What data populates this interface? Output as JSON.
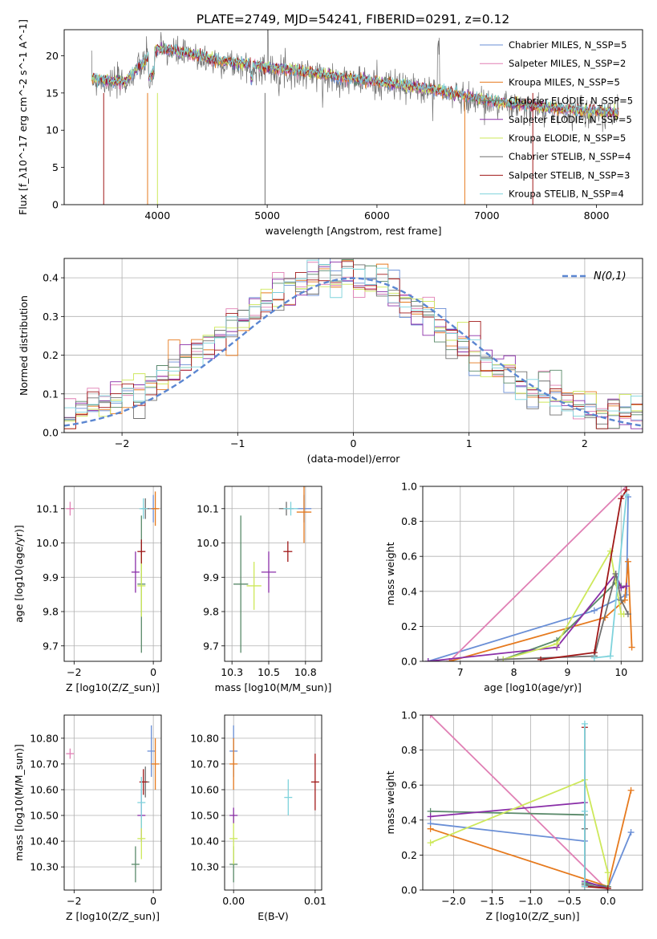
{
  "figure": {
    "title": "PLATE=2749, MJD=54241, FIBERID=0291, z=0.12"
  },
  "colors": {
    "Chabrier MILES": "#6a8fd6",
    "Salpeter MILES": "#e07fb4",
    "Kroupa MILES": "#e67a1e",
    "Chabrier ELODIE": "#5a8a6a",
    "Salpeter ELODIE": "#8a2fa8",
    "Kroupa ELODIE": "#cde85a",
    "Chabrier STELIB": "#707070",
    "Salpeter STELIB": "#a01818",
    "Kroupa STELIB": "#7fd3dc"
  },
  "chart_data": [
    {
      "id": "spectrum",
      "type": "line",
      "xlabel": "wavelength [Angstrom, rest frame]",
      "ylabel": "Flux [f_λ10^-17 erg cm^-2 s^-1 A^-1]",
      "xlim": [
        3150,
        8420
      ],
      "ylim": [
        0,
        23.5
      ],
      "xticks": [
        4000,
        5000,
        6000,
        7000,
        8000
      ],
      "yticks": [
        0,
        5,
        10,
        15,
        20
      ],
      "legend": "top-right",
      "legend_entries": [
        "Chabrier MILES, N_SSP=5",
        "Salpeter MILES, N_SSP=2",
        "Kroupa MILES, N_SSP=5",
        "Chabrier ELODIE, N_SSP=5",
        "Salpeter ELODIE, N_SSP=5",
        "Kroupa ELODIE, N_SSP=5",
        "Chabrier STELIB, N_SSP=4",
        "Salpeter STELIB, N_SSP=3",
        "Kroupa STELIB, N_SSP=4"
      ],
      "continuum_x": [
        3400,
        3600,
        3700,
        3800,
        3900,
        3950,
        4000,
        4200,
        4500,
        5000,
        5500,
        6000,
        6500,
        7000,
        7500,
        8000,
        8200
      ],
      "continuum_y": [
        17,
        16.5,
        16.5,
        18,
        19.5,
        20.5,
        21,
        20.5,
        19.5,
        18.5,
        17.5,
        16.5,
        15.5,
        14,
        13,
        12.5,
        12.3
      ]
    },
    {
      "id": "residual_hist",
      "type": "histogram",
      "xlabel": "(data-model)/error",
      "ylabel": "Normed distribution",
      "xlim": [
        -2.5,
        2.5
      ],
      "ylim": [
        0,
        0.45
      ],
      "xticks": [
        -2,
        -1,
        0,
        1,
        2
      ],
      "yticks": [
        0.0,
        0.1,
        0.2,
        0.3,
        0.4
      ],
      "reference": "N(0,1)",
      "legend": "top-right"
    },
    {
      "id": "age_vs_Z",
      "type": "scatter",
      "xlabel": "Z [log10(Z/Z_sun)]",
      "ylabel": "age  [log10(age/yr)]",
      "xlim": [
        -2.25,
        0.2
      ],
      "ylim": [
        9.655,
        10.165
      ],
      "xticks": [
        -2,
        0
      ],
      "yticks": [
        9.7,
        9.8,
        9.9,
        10.0,
        10.1
      ],
      "points": [
        {
          "model": "Salpeter MILES",
          "x": -2.1,
          "y": 10.1,
          "ey": 0.02
        },
        {
          "model": "Chabrier MILES",
          "x": 0.0,
          "y": 10.1,
          "ey": 0.04
        },
        {
          "model": "Kroupa MILES",
          "x": 0.05,
          "y": 10.1,
          "ey": 0.05
        },
        {
          "model": "Chabrier ELODIE",
          "x": -0.3,
          "y": 9.88,
          "ey": 0.2
        },
        {
          "model": "Salpeter ELODIE",
          "x": -0.45,
          "y": 9.915,
          "ey": 0.06
        },
        {
          "model": "Kroupa ELODIE",
          "x": -0.3,
          "y": 9.875,
          "ey": 0.09
        },
        {
          "model": "Chabrier STELIB",
          "x": -0.2,
          "y": 10.1,
          "ey": 0.03
        },
        {
          "model": "Salpeter STELIB",
          "x": -0.3,
          "y": 9.975,
          "ey": 0.035
        },
        {
          "model": "Kroupa STELIB",
          "x": -0.25,
          "y": 10.1,
          "ey": 0.03
        }
      ]
    },
    {
      "id": "age_vs_mass",
      "type": "scatter",
      "xlabel": "mass [log10(M/M_sun)]",
      "ylabel": "",
      "xlim": [
        10.2,
        10.86
      ],
      "ylim": [
        9.655,
        10.165
      ],
      "xticks": [
        10.25,
        10.5,
        10.75
      ],
      "yticks": [
        9.7,
        9.8,
        9.9,
        10.0,
        10.1
      ],
      "points": [
        {
          "model": "Chabrier MILES",
          "x": 10.74,
          "y": 10.1,
          "ex": 0.1,
          "ey": 0.04
        },
        {
          "model": "Kroupa MILES",
          "x": 10.74,
          "y": 10.09,
          "ex": 0.1,
          "ey": 0.09
        },
        {
          "model": "Chabrier ELODIE",
          "x": 10.31,
          "y": 9.88,
          "ex": 0.1,
          "ey": 0.2
        },
        {
          "model": "Salpeter ELODIE",
          "x": 10.5,
          "y": 9.915,
          "ex": 0.1,
          "ey": 0.06
        },
        {
          "model": "Kroupa ELODIE",
          "x": 10.4,
          "y": 9.875,
          "ex": 0.1,
          "ey": 0.07
        },
        {
          "model": "Chabrier STELIB",
          "x": 10.62,
          "y": 10.1,
          "ex": 0.1,
          "ey": 0.02
        },
        {
          "model": "Salpeter STELIB",
          "x": 10.63,
          "y": 9.975,
          "ex": 0.06,
          "ey": 0.03
        },
        {
          "model": "Kroupa STELIB",
          "x": 10.65,
          "y": 10.1,
          "ex": 0.1,
          "ey": 0.02
        }
      ]
    },
    {
      "id": "massweight_vs_age",
      "type": "line",
      "xlabel": "age  [log10(age/yr)]",
      "ylabel": "mass weight",
      "xlim": [
        6.3,
        10.4
      ],
      "ylim": [
        0.0,
        1.0
      ],
      "xticks": [
        7,
        8,
        9,
        10
      ],
      "yticks": [
        0.0,
        0.2,
        0.4,
        0.6,
        0.8,
        1.0
      ],
      "series": [
        {
          "model": "Chabrier MILES",
          "x": [
            6.4,
            9.5,
            10.1,
            10.13
          ],
          "y": [
            0.0,
            0.29,
            0.38,
            0.94
          ]
        },
        {
          "model": "Salpeter MILES",
          "x": [
            6.8,
            10.1
          ],
          "y": [
            0.0,
            1.0
          ]
        },
        {
          "model": "Kroupa MILES",
          "x": [
            6.8,
            9.7,
            10.07,
            10.13,
            10.2
          ],
          "y": [
            0.0,
            0.25,
            0.35,
            0.57,
            0.08
          ]
        },
        {
          "model": "Chabrier ELODIE",
          "x": [
            7.8,
            8.8,
            9.9,
            10.0
          ],
          "y": [
            0.01,
            0.12,
            0.45,
            0.43
          ]
        },
        {
          "model": "Salpeter ELODIE",
          "x": [
            6.4,
            8.8,
            9.9,
            10.0,
            10.1
          ],
          "y": [
            0.0,
            0.08,
            0.5,
            0.42,
            0.43
          ]
        },
        {
          "model": "Kroupa ELODIE",
          "x": [
            7.8,
            8.8,
            9.8,
            10.0,
            10.05
          ],
          "y": [
            0.01,
            0.1,
            0.63,
            0.27,
            0.27
          ]
        },
        {
          "model": "Chabrier STELIB",
          "x": [
            7.7,
            9.5,
            9.9,
            10.0,
            10.13
          ],
          "y": [
            0.01,
            0.03,
            0.5,
            0.35,
            0.27
          ]
        },
        {
          "model": "Salpeter STELIB",
          "x": [
            8.5,
            9.5,
            10.0,
            10.1
          ],
          "y": [
            0.01,
            0.05,
            0.93,
            0.98
          ]
        },
        {
          "model": "Kroupa STELIB",
          "x": [
            9.5,
            9.8,
            10.1
          ],
          "y": [
            0.02,
            0.03,
            0.95
          ]
        }
      ]
    },
    {
      "id": "mass_vs_Z",
      "type": "scatter",
      "xlabel": "Z [log10(Z/Z_sun)]",
      "ylabel": "mass [log10(M/M_sun)]",
      "xlim": [
        -2.25,
        0.2
      ],
      "ylim": [
        10.21,
        10.89
      ],
      "xticks": [
        -2,
        0
      ],
      "yticks": [
        10.3,
        10.4,
        10.5,
        10.6,
        10.7,
        10.8
      ],
      "points": [
        {
          "model": "Salpeter MILES",
          "x": -2.1,
          "y": 10.74,
          "ey": 0.02
        },
        {
          "model": "Chabrier MILES",
          "x": -0.05,
          "y": 10.75,
          "ey": 0.1
        },
        {
          "model": "Kroupa MILES",
          "x": 0.05,
          "y": 10.7,
          "ey": 0.1
        },
        {
          "model": "Chabrier ELODIE",
          "x": -0.45,
          "y": 10.31,
          "ey": 0.07
        },
        {
          "model": "Salpeter ELODIE",
          "x": -0.3,
          "y": 10.5,
          "ey": 0.1
        },
        {
          "model": "Kroupa ELODIE",
          "x": -0.3,
          "y": 10.41,
          "ey": 0.08
        },
        {
          "model": "Chabrier STELIB",
          "x": -0.2,
          "y": 10.63,
          "ey": 0.06
        },
        {
          "model": "Salpeter STELIB",
          "x": -0.25,
          "y": 10.63,
          "ey": 0.05
        },
        {
          "model": "Kroupa STELIB",
          "x": -0.3,
          "y": 10.55,
          "ey": 0.1
        }
      ]
    },
    {
      "id": "mass_vs_EBV",
      "type": "scatter",
      "xlabel": "E(B-V)",
      "ylabel": "",
      "xlim": [
        -0.0011,
        0.0108
      ],
      "ylim": [
        10.21,
        10.89
      ],
      "xticks": [
        0.0,
        0.01
      ],
      "xtick_labels": [
        "0.00",
        "0.01"
      ],
      "yticks": [
        10.3,
        10.4,
        10.5,
        10.6,
        10.7,
        10.8
      ],
      "points": [
        {
          "model": "Chabrier MILES",
          "x": 0.0,
          "y": 10.75,
          "ey": 0.1
        },
        {
          "model": "Kroupa MILES",
          "x": 0.0,
          "y": 10.7,
          "ey": 0.1
        },
        {
          "model": "Chabrier ELODIE",
          "x": 0.0,
          "y": 10.31,
          "ey": 0.07
        },
        {
          "model": "Kroupa ELODIE",
          "x": 0.0,
          "y": 10.41,
          "ey": 0.1
        },
        {
          "model": "Salpeter ELODIE",
          "x": 0.0,
          "y": 10.5,
          "ey": 0.03
        },
        {
          "model": "Kroupa STELIB",
          "x": 0.0067,
          "y": 10.57,
          "ey": 0.07
        },
        {
          "model": "Salpeter STELIB",
          "x": 0.01,
          "y": 10.63,
          "ey": 0.11
        }
      ]
    },
    {
      "id": "massweight_vs_Z",
      "type": "line",
      "xlabel": "Z [log10(Z/Z_sun)]",
      "ylabel": "mass weight",
      "xlim": [
        -2.4,
        0.45
      ],
      "ylim": [
        0.0,
        1.0
      ],
      "xticks": [
        -2.0,
        -1.5,
        -1.0,
        -0.5,
        0.0
      ],
      "xtick_labels": [
        "−2.0",
        "−1.5",
        "−1.0",
        "−0.5",
        "0.0"
      ],
      "yticks": [
        0.0,
        0.2,
        0.4,
        0.6,
        0.8,
        1.0
      ],
      "series": [
        {
          "model": "Chabrier MILES",
          "x": [
            -2.3,
            -0.3,
            -0.3,
            0.0,
            0.3
          ],
          "y": [
            0.38,
            0.28,
            0.03,
            0.01,
            0.33
          ]
        },
        {
          "model": "Salpeter MILES",
          "x": [
            -2.3,
            0.0
          ],
          "y": [
            1.0,
            0.0
          ]
        },
        {
          "model": "Kroupa MILES",
          "x": [
            -2.3,
            0.0,
            0.3
          ],
          "y": [
            0.35,
            0.02,
            0.57
          ]
        },
        {
          "model": "Chabrier ELODIE",
          "x": [
            -2.3,
            -0.3,
            -0.3,
            0.0
          ],
          "y": [
            0.45,
            0.43,
            0.04,
            0.02
          ]
        },
        {
          "model": "Salpeter ELODIE",
          "x": [
            -2.3,
            -0.3,
            -0.3,
            0.0
          ],
          "y": [
            0.42,
            0.5,
            0.05,
            0.01
          ]
        },
        {
          "model": "Kroupa ELODIE",
          "x": [
            -2.3,
            -0.3,
            0.0,
            0.0
          ],
          "y": [
            0.27,
            0.63,
            0.1,
            0.01
          ]
        },
        {
          "model": "Chabrier STELIB",
          "x": [
            -0.3,
            -0.3,
            0.0
          ],
          "y": [
            0.35,
            0.03,
            0.01
          ]
        },
        {
          "model": "Salpeter STELIB",
          "x": [
            -0.3,
            -0.3,
            0.0
          ],
          "y": [
            0.93,
            0.02,
            0.01
          ]
        },
        {
          "model": "Kroupa STELIB",
          "x": [
            -0.3,
            -0.3,
            -0.3
          ],
          "y": [
            0.95,
            0.45,
            0.02
          ]
        }
      ]
    }
  ]
}
